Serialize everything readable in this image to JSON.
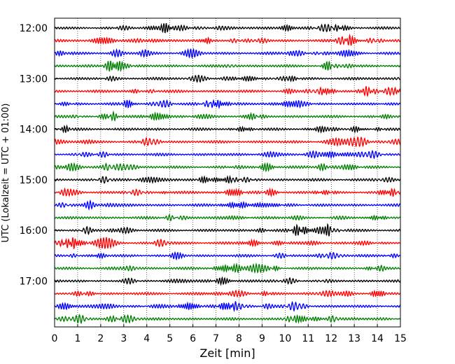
{
  "chart_data": {
    "type": "line",
    "title": "",
    "xlabel": "Zeit  [min]",
    "ylabel": "UTC (Lokalzeit = UTC + 01:00)",
    "xlim": [
      0,
      15
    ],
    "x_ticks": [
      "0",
      "1",
      "2",
      "3",
      "4",
      "5",
      "6",
      "7",
      "8",
      "9",
      "10",
      "11",
      "12",
      "13",
      "14",
      "15"
    ],
    "y_tick_labels": [
      "12:00",
      "13:00",
      "14:00",
      "15:00",
      "16:00",
      "17:00"
    ],
    "grid": "vertical dotted",
    "rows_per_hour": 4,
    "row_colors": [
      "#000000",
      "#ff0000",
      "#0000ff",
      "#007f00"
    ],
    "series": [
      {
        "start": "12:00"
      },
      {
        "start": "12:15"
      },
      {
        "start": "12:30"
      },
      {
        "start": "12:45"
      },
      {
        "start": "13:00"
      },
      {
        "start": "13:15"
      },
      {
        "start": "13:30"
      },
      {
        "start": "13:45"
      },
      {
        "start": "14:00"
      },
      {
        "start": "14:15"
      },
      {
        "start": "14:30"
      },
      {
        "start": "14:45"
      },
      {
        "start": "15:00"
      },
      {
        "start": "15:15"
      },
      {
        "start": "15:30"
      },
      {
        "start": "15:45"
      },
      {
        "start": "16:00"
      },
      {
        "start": "16:15"
      },
      {
        "start": "16:30"
      },
      {
        "start": "16:45"
      },
      {
        "start": "17:00"
      },
      {
        "start": "17:15"
      },
      {
        "start": "17:30"
      },
      {
        "start": "17:45"
      }
    ]
  }
}
